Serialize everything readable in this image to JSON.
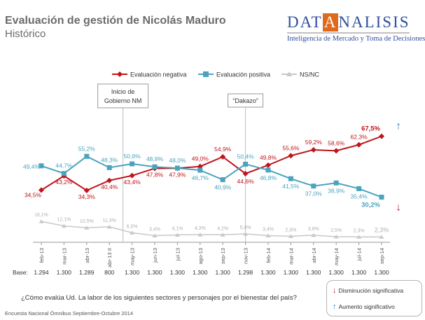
{
  "header": {
    "title": "Evaluación de gestión de Nicolás Maduro",
    "subtitle": "Histórico",
    "logo_pre": "DAT",
    "logo_mid": "A",
    "logo_post": "NALISIS",
    "logo_tagline": "Inteligencia de Mercado y Toma de Decisiones"
  },
  "chart_data": {
    "type": "line",
    "categories": [
      "feb-13",
      "mar-13",
      "abr-13",
      "abr-13 II",
      "may-13",
      "jun-13",
      "jul-13",
      "ago-13",
      "sep-13",
      "nov-13",
      "feb-14",
      "mar-14",
      "abr-14",
      "may-14",
      "jul-14",
      "sep-14"
    ],
    "series": [
      {
        "name": "Evaluación negativa",
        "color": "#c0141b",
        "values": [
          34.5,
          43.2,
          34.3,
          40.4,
          43.4,
          47.8,
          47.9,
          49.0,
          54.9,
          44.6,
          49.8,
          55.6,
          59.2,
          58.6,
          62.3,
          67.5
        ],
        "labels": [
          "34,5%",
          "43,2%",
          "34,3%",
          "40,4%",
          "43,4%",
          "47,8%",
          "47,9%",
          "49,0%",
          "54,9%",
          "44,6%",
          "49,8%",
          "55,6%",
          "59,2%",
          "58,6%",
          "62,3%",
          "67,5%"
        ]
      },
      {
        "name": "Evaluación positiva",
        "color": "#4ba3bd",
        "values": [
          49.4,
          44.7,
          55.2,
          48.3,
          50.6,
          48.8,
          48.0,
          46.7,
          40.9,
          50.4,
          46.8,
          41.5,
          37.0,
          38.9,
          35.4,
          30.2
        ],
        "labels": [
          "49,4%",
          "44,7%",
          "55,2%",
          "48,3%",
          "50,6%",
          "48,8%",
          "48,0%",
          "46,7%",
          "40,9%",
          "50,4%",
          "46,8%",
          "41,5%",
          "37,0%",
          "38,9%",
          "35,4%",
          "30,2%"
        ]
      },
      {
        "name": "NS/NC",
        "color": "#c8c8c8",
        "values": [
          16.1,
          12.1,
          10.5,
          11.3,
          6.0,
          3.4,
          4.1,
          4.3,
          4.2,
          5.0,
          3.4,
          2.9,
          3.8,
          2.5,
          2.3,
          2.3
        ],
        "labels": [
          "16,1%",
          "12,1%",
          "10,5%",
          "11,3%",
          "6,0%",
          "3,4%",
          "4,1%",
          "4,3%",
          "4,2%",
          "5,0%",
          "3,4%",
          "2,9%",
          "3,8%",
          "2,5%",
          "2,3%",
          "2,3%"
        ]
      }
    ],
    "bases_label": "Base:",
    "bases": [
      "1.294",
      "1.300",
      "1.289",
      "800",
      "1.300",
      "1.300",
      "1.300",
      "1.300",
      "1.300",
      "1.298",
      "1.300",
      "1.300",
      "1.300",
      "1.300",
      "1.300",
      "1.300"
    ],
    "annotations": [
      {
        "text": "Inicio de Gobierno NM",
        "index": 3.6
      },
      {
        "text": "“Dakazo”",
        "index": 9
      }
    ],
    "markers": {
      "up_color": "#2e6fc0",
      "down_color": "#c0141b"
    },
    "ylim": [
      0,
      75
    ],
    "legend_position": "top"
  },
  "footer": {
    "question": "¿Cómo evalúa Ud. La labor de los siguientes sectores y personajes por el bienestar del país?",
    "source": "Encuesta Nacional Ómnibus Septiembre-Octubre 2014",
    "sig_down_label": "Disminución significativa",
    "sig_up_label": "Aumento significativo",
    "down_arrow": "↓",
    "up_arrow": "↑"
  }
}
